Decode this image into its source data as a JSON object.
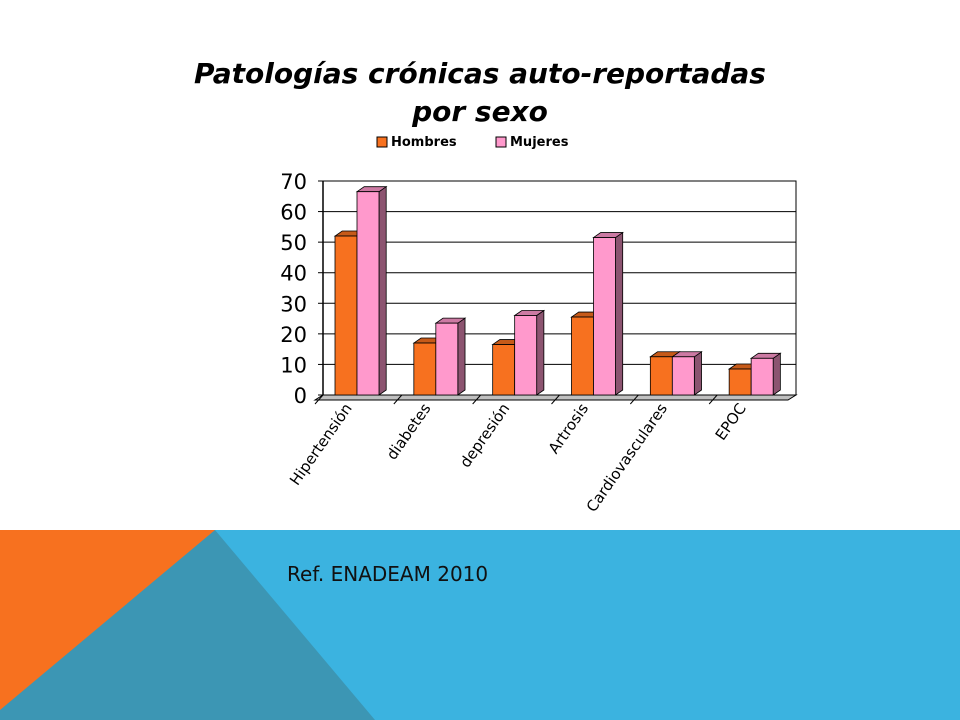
{
  "slide": {
    "title_line1": "Patologías crónicas auto-reportadas",
    "title_line2": "por sexo",
    "reference": "Ref. ENADEAM 2010",
    "colors": {
      "band": "#3bb3e0",
      "band_dark": "#3c96b4",
      "accent_orange": "#f7711f"
    }
  },
  "chart_data": {
    "type": "bar",
    "categories": [
      "Hipertensión",
      "diabetes",
      "depresión",
      "Artrosis",
      "Cardiovasculares",
      "EPOC"
    ],
    "series": [
      {
        "name": "Hombres",
        "values": [
          52,
          17,
          16.5,
          25.5,
          12.5,
          8.5
        ],
        "color": "#f7711f"
      },
      {
        "name": "Mujeres",
        "values": [
          66.5,
          23.5,
          26,
          51.5,
          12.5,
          12
        ],
        "color": "#ff99cc"
      }
    ],
    "ylim": [
      0,
      70
    ],
    "yticks": [
      0,
      10,
      20,
      30,
      40,
      50,
      60,
      70
    ],
    "legend_position": "top",
    "grid": true
  }
}
